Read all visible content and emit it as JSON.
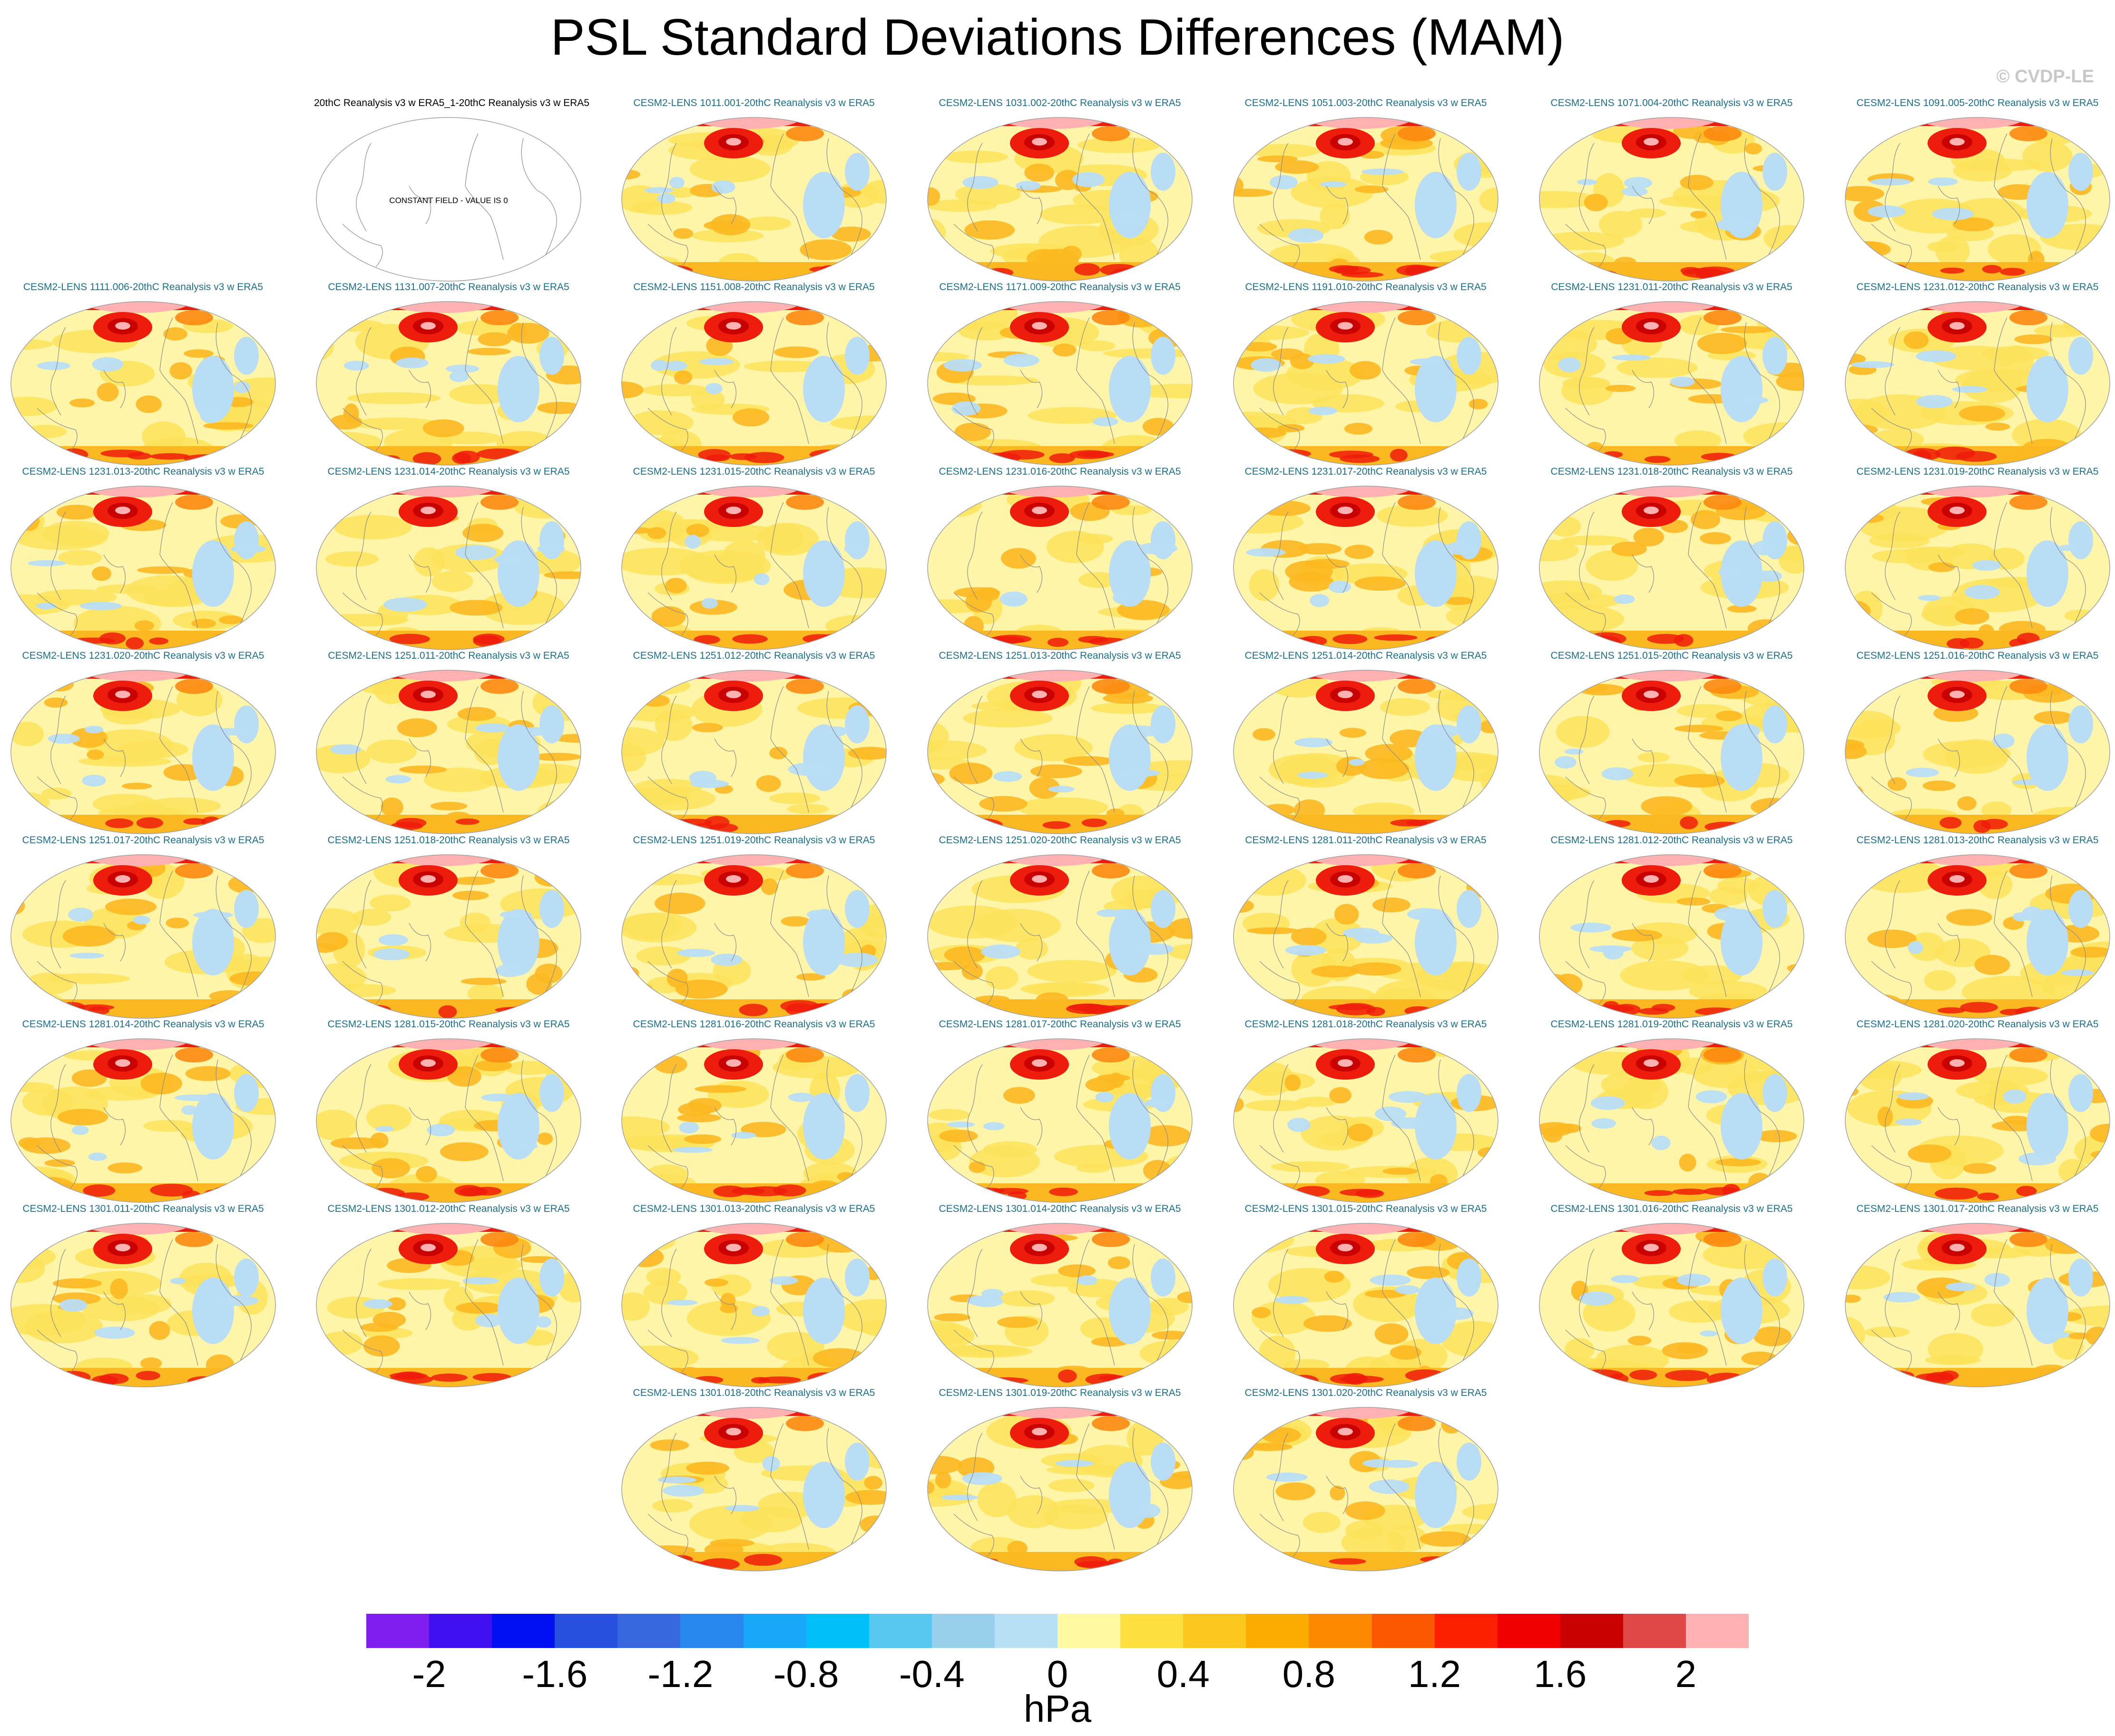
{
  "title": "PSL Standard Deviations Differences (MAM)",
  "credit": "© CVDP-LE",
  "reference_panel": {
    "title": "20thC Reanalysis v3 w ERA5_1-20thC Reanalysis v3 w ERA5",
    "label": "CONSTANT FIELD - VALUE IS 0"
  },
  "panels": [
    "CESM2-LENS 1011.001-20thC Reanalysis v3 w ERA5",
    "CESM2-LENS 1031.002-20thC Reanalysis v3 w ERA5",
    "CESM2-LENS 1051.003-20thC Reanalysis v3 w ERA5",
    "CESM2-LENS 1071.004-20thC Reanalysis v3 w ERA5",
    "CESM2-LENS 1091.005-20thC Reanalysis v3 w ERA5",
    "CESM2-LENS 1111.006-20thC Reanalysis v3 w ERA5",
    "CESM2-LENS 1131.007-20thC Reanalysis v3 w ERA5",
    "CESM2-LENS 1151.008-20thC Reanalysis v3 w ERA5",
    "CESM2-LENS 1171.009-20thC Reanalysis v3 w ERA5",
    "CESM2-LENS 1191.010-20thC Reanalysis v3 w ERA5",
    "CESM2-LENS 1231.011-20thC Reanalysis v3 w ERA5",
    "CESM2-LENS 1231.012-20thC Reanalysis v3 w ERA5",
    "CESM2-LENS 1231.013-20thC Reanalysis v3 w ERA5",
    "CESM2-LENS 1231.014-20thC Reanalysis v3 w ERA5",
    "CESM2-LENS 1231.015-20thC Reanalysis v3 w ERA5",
    "CESM2-LENS 1231.016-20thC Reanalysis v3 w ERA5",
    "CESM2-LENS 1231.017-20thC Reanalysis v3 w ERA5",
    "CESM2-LENS 1231.018-20thC Reanalysis v3 w ERA5",
    "CESM2-LENS 1231.019-20thC Reanalysis v3 w ERA5",
    "CESM2-LENS 1231.020-20thC Reanalysis v3 w ERA5",
    "CESM2-LENS 1251.011-20thC Reanalysis v3 w ERA5",
    "CESM2-LENS 1251.012-20thC Reanalysis v3 w ERA5",
    "CESM2-LENS 1251.013-20thC Reanalysis v3 w ERA5",
    "CESM2-LENS 1251.014-20thC Reanalysis v3 w ERA5",
    "CESM2-LENS 1251.015-20thC Reanalysis v3 w ERA5",
    "CESM2-LENS 1251.016-20thC Reanalysis v3 w ERA5",
    "CESM2-LENS 1251.017-20thC Reanalysis v3 w ERA5",
    "CESM2-LENS 1251.018-20thC Reanalysis v3 w ERA5",
    "CESM2-LENS 1251.019-20thC Reanalysis v3 w ERA5",
    "CESM2-LENS 1251.020-20thC Reanalysis v3 w ERA5",
    "CESM2-LENS 1281.011-20thC Reanalysis v3 w ERA5",
    "CESM2-LENS 1281.012-20thC Reanalysis v3 w ERA5",
    "CESM2-LENS 1281.013-20thC Reanalysis v3 w ERA5",
    "CESM2-LENS 1281.014-20thC Reanalysis v3 w ERA5",
    "CESM2-LENS 1281.015-20thC Reanalysis v3 w ERA5",
    "CESM2-LENS 1281.016-20thC Reanalysis v3 w ERA5",
    "CESM2-LENS 1281.017-20thC Reanalysis v3 w ERA5",
    "CESM2-LENS 1281.018-20thC Reanalysis v3 w ERA5",
    "CESM2-LENS 1281.019-20thC Reanalysis v3 w ERA5",
    "CESM2-LENS 1281.020-20thC Reanalysis v3 w ERA5",
    "CESM2-LENS 1301.011-20thC Reanalysis v3 w ERA5",
    "CESM2-LENS 1301.012-20thC Reanalysis v3 w ERA5",
    "CESM2-LENS 1301.013-20thC Reanalysis v3 w ERA5",
    "CESM2-LENS 1301.014-20thC Reanalysis v3 w ERA5",
    "CESM2-LENS 1301.015-20thC Reanalysis v3 w ERA5",
    "CESM2-LENS 1301.016-20thC Reanalysis v3 w ERA5",
    "CESM2-LENS 1301.017-20thC Reanalysis v3 w ERA5",
    "CESM2-LENS 1301.018-20thC Reanalysis v3 w ERA5",
    "CESM2-LENS 1301.019-20thC Reanalysis v3 w ERA5",
    "CESM2-LENS 1301.020-20thC Reanalysis v3 w ERA5"
  ],
  "colorbar": {
    "units": "hPa",
    "tick_labels": [
      "-2",
      "-1.6",
      "-1.2",
      "-0.8",
      "-0.4",
      "0",
      "0.4",
      "0.8",
      "1.2",
      "1.6",
      "2"
    ],
    "colors": [
      "#7f1fef",
      "#4010f0",
      "#0010f0",
      "#2850e0",
      "#3868e0",
      "#2888f0",
      "#18a8f8",
      "#00c0f8",
      "#58c8f0",
      "#98d0ec",
      "#b8e0f4",
      "#fff8a0",
      "#fde040",
      "#fcc820",
      "#fcac00",
      "#fc8800",
      "#fc5800",
      "#fc2000",
      "#f00000",
      "#c80000",
      "#e04848",
      "#ffb0b0"
    ]
  },
  "map_colors": {
    "base": "#fff5a8",
    "mid": "#fde25a",
    "orange": "#fcb820",
    "dark_orange": "#fc8a10",
    "red": "#ee1c0c",
    "dark_red": "#c80000",
    "pink": "#ffb0b0",
    "blue": "#b8ddf5",
    "coast": "#8a8a8a",
    "rim": "#a0a0a0"
  }
}
